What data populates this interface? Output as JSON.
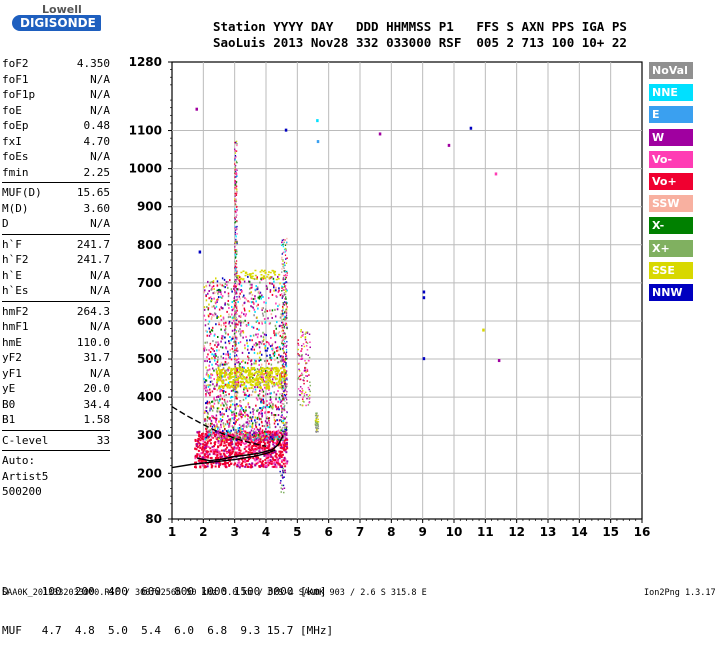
{
  "logo": {
    "top": "Lowell",
    "bottom": "DIGISONDE"
  },
  "header": {
    "line1": "Station YYYY DAY   DDD HHMMSS P1   FFS S AXN PPS IGA PS",
    "line2": "SaoLuis 2013 Nov28 332 033000 RSF  005 2 713 100 10+ 22"
  },
  "params": [
    {
      "name": "foF2",
      "value": "4.350"
    },
    {
      "name": "foF1",
      "value": "N/A"
    },
    {
      "name": "foF1p",
      "value": "N/A"
    },
    {
      "name": "foE",
      "value": "N/A"
    },
    {
      "name": "foEp",
      "value": "0.48"
    },
    {
      "name": "fxI",
      "value": "4.70"
    },
    {
      "name": "foEs",
      "value": "N/A"
    },
    {
      "name": "fmin",
      "value": "2.25"
    },
    {
      "name": "MUF(D)",
      "value": "15.65",
      "sep": true
    },
    {
      "name": "M(D)",
      "value": "3.60"
    },
    {
      "name": "D",
      "value": "N/A"
    },
    {
      "name": "h`F",
      "value": "241.7",
      "sep": true
    },
    {
      "name": "h`F2",
      "value": "241.7"
    },
    {
      "name": "h`E",
      "value": "N/A"
    },
    {
      "name": "h`Es",
      "value": "N/A"
    },
    {
      "name": "hmF2",
      "value": "264.3",
      "sep": true
    },
    {
      "name": "hmF1",
      "value": "N/A"
    },
    {
      "name": "hmE",
      "value": "110.0"
    },
    {
      "name": "yF2",
      "value": "31.7"
    },
    {
      "name": "yF1",
      "value": "N/A"
    },
    {
      "name": "yE",
      "value": "20.0"
    },
    {
      "name": "B0",
      "value": "34.4"
    },
    {
      "name": "B1",
      "value": "1.58"
    },
    {
      "name": "C-level",
      "value": "33",
      "sep": true
    },
    {
      "name": "Auto:",
      "value": "",
      "sep": true
    },
    {
      "name": "Artist5",
      "value": ""
    },
    {
      "name": "500200",
      "value": ""
    }
  ],
  "legend": [
    {
      "label": "NoVal",
      "color": "#909090"
    },
    {
      "label": "NNE",
      "color": "#00e0ff"
    },
    {
      "label": "E",
      "color": "#3aa0f0"
    },
    {
      "label": "W",
      "color": "#a000a0"
    },
    {
      "label": "Vo-",
      "color": "#ff3cb4"
    },
    {
      "label": "Vo+",
      "color": "#f00030"
    },
    {
      "label": "SSW",
      "color": "#f8b0a0"
    },
    {
      "label": "X-",
      "color": "#008000"
    },
    {
      "label": "X+",
      "color": "#80b060"
    },
    {
      "label": "SSE",
      "color": "#d8d800"
    },
    {
      "label": "NNW",
      "color": "#0000c0"
    }
  ],
  "footer": {
    "row1": "D     100  200  400  600  800 1000 1500 3000 [km]",
    "row2": "MUF   4.7  4.8  5.0  5.4  6.0  6.8  9.3 15.7 [MHz]",
    "file": "SAA0K_2013332033000.RSF / 300fx256h 50 kHz 5.0 km / DPS-4 SAA0K 903 / 2.6 S 315.8 E",
    "version": "Ion2Png 1.3.17"
  },
  "chart_data": {
    "type": "scatter",
    "x_ticks": [
      1,
      2,
      3,
      4,
      5,
      6,
      7,
      8,
      9,
      10,
      11,
      12,
      13,
      14,
      15,
      16
    ],
    "y_tick_labels": [
      "80",
      "200",
      "300",
      "400",
      "500",
      "600",
      "700",
      "800",
      "900",
      "1000",
      "1100",
      "1280"
    ],
    "xlim": [
      1,
      16
    ],
    "ylim": [
      80,
      1280
    ],
    "grid": true,
    "traces": [
      {
        "name": "O-trace",
        "points": [
          [
            1.8,
            240
          ],
          [
            2.2,
            233
          ],
          [
            2.6,
            237
          ],
          [
            3.0,
            244
          ],
          [
            3.4,
            248
          ],
          [
            3.8,
            253
          ],
          [
            4.2,
            262
          ],
          [
            4.4,
            276
          ],
          [
            4.55,
            300
          ]
        ]
      },
      {
        "name": "X-trace",
        "points": [
          [
            1.0,
            215
          ],
          [
            1.6,
            223
          ],
          [
            2.3,
            230
          ],
          [
            3.0,
            236
          ],
          [
            3.6,
            244
          ],
          [
            4.0,
            252
          ],
          [
            4.3,
            261
          ]
        ]
      },
      {
        "name": "dashed",
        "points": [
          [
            1.0,
            375
          ],
          [
            1.5,
            350
          ],
          [
            2.0,
            328
          ],
          [
            2.5,
            308
          ],
          [
            3.0,
            292
          ],
          [
            3.5,
            280
          ],
          [
            4.0,
            271
          ]
        ]
      }
    ],
    "isolated_points": [
      {
        "x": 1.75,
        "y": 1160,
        "c": "W"
      },
      {
        "x": 1.85,
        "y": 785,
        "c": "NNW"
      },
      {
        "x": 4.6,
        "y": 1105,
        "c": "NNW"
      },
      {
        "x": 5.6,
        "y": 1130,
        "c": "NNE"
      },
      {
        "x": 5.62,
        "y": 1075,
        "c": "E"
      },
      {
        "x": 7.6,
        "y": 1095,
        "c": "W"
      },
      {
        "x": 9.8,
        "y": 1065,
        "c": "W"
      },
      {
        "x": 10.5,
        "y": 1110,
        "c": "NNW"
      },
      {
        "x": 11.3,
        "y": 990,
        "c": "Vo-"
      },
      {
        "x": 9.0,
        "y": 680,
        "c": "NNW"
      },
      {
        "x": 9.0,
        "y": 665,
        "c": "NNW"
      },
      {
        "x": 9.0,
        "y": 505,
        "c": "NNW"
      },
      {
        "x": 11.4,
        "y": 500,
        "c": "W"
      },
      {
        "x": 10.9,
        "y": 580,
        "c": "SSE"
      }
    ]
  }
}
